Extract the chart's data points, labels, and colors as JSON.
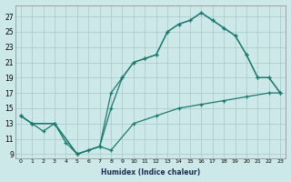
{
  "xlabel": "Humidex (Indice chaleur)",
  "xlim": [
    -0.5,
    23.5
  ],
  "ylim": [
    8.5,
    28.5
  ],
  "xticks": [
    0,
    1,
    2,
    3,
    4,
    5,
    6,
    7,
    8,
    9,
    10,
    11,
    12,
    13,
    14,
    15,
    16,
    17,
    18,
    19,
    20,
    21,
    22,
    23
  ],
  "yticks": [
    9,
    11,
    13,
    15,
    17,
    19,
    21,
    23,
    25,
    27
  ],
  "bg_color": "#cde8e8",
  "line_color": "#1a7a6e",
  "grid_color": "#aac8c8",
  "curve1_x": [
    0,
    1,
    2,
    3,
    4,
    5,
    6,
    7,
    8,
    9,
    10,
    11,
    12,
    13,
    14,
    15,
    16,
    17,
    18,
    19,
    20,
    21,
    22,
    23
  ],
  "curve1_y": [
    14,
    13,
    12,
    13,
    10.5,
    9,
    9.5,
    10,
    15,
    19,
    21,
    21.5,
    22,
    25,
    26,
    26.5,
    27.5,
    26.5,
    25.5,
    24.5,
    22,
    19,
    19,
    17
  ],
  "curve2_x": [
    0,
    1,
    3,
    5,
    6,
    7,
    8,
    9,
    10,
    11,
    12,
    13,
    14,
    15,
    16,
    17,
    18,
    19,
    20,
    21,
    22,
    23
  ],
  "curve2_y": [
    14,
    13,
    13,
    9,
    9.5,
    10,
    17,
    19,
    21,
    21.5,
    22,
    25,
    26,
    26.5,
    27.5,
    26.5,
    25.5,
    24.5,
    22,
    19,
    19,
    17
  ],
  "curve3_x": [
    0,
    1,
    3,
    5,
    7,
    8,
    10,
    12,
    14,
    16,
    18,
    20,
    22,
    23
  ],
  "curve3_y": [
    14,
    13,
    13,
    9,
    10,
    9.5,
    13,
    14,
    15,
    15.5,
    16,
    16.5,
    17,
    17
  ]
}
